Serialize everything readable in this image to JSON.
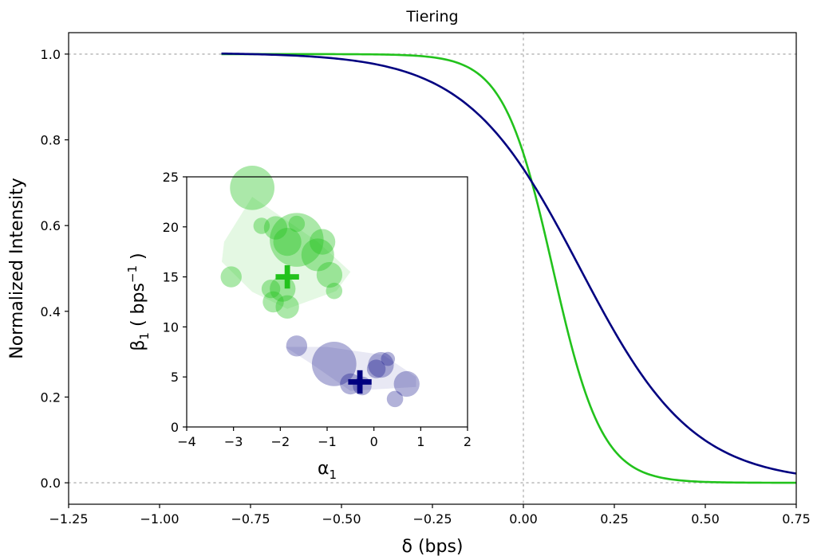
{
  "chart_data": [
    {
      "type": "line",
      "title": "Tiering",
      "xlabel": "δ (bps)",
      "ylabel": "Normalized Intensity",
      "xlim": [
        -1.25,
        0.75
      ],
      "ylim": [
        -0.05,
        1.05
      ],
      "x_ticks": [
        -1.25,
        -1.0,
        -0.75,
        -0.5,
        -0.25,
        0.0,
        0.25,
        0.5,
        0.75
      ],
      "x_tick_labels": [
        "−1.25",
        "−1.00",
        "−0.75",
        "−0.50",
        "−0.25",
        "0.00",
        "0.25",
        "0.50",
        "0.75"
      ],
      "y_ticks": [
        0.0,
        0.2,
        0.4,
        0.6,
        0.8,
        1.0
      ],
      "y_tick_labels": [
        "0.0",
        "0.2",
        "0.4",
        "0.6",
        "0.8",
        "1.0"
      ],
      "reference_lines": {
        "horizontal": [
          0.0,
          1.0
        ],
        "vertical": [
          0.0
        ]
      },
      "grid": false,
      "series": [
        {
          "color": "#22c21c",
          "x_range": [
            -0.83,
            0.75
          ],
          "sigmoid": {
            "center": 0.081,
            "beta": 14.8,
            "scale": 1.0
          }
        },
        {
          "color": "#000080",
          "x_range": [
            -0.83,
            0.75
          ],
          "sigmoid": {
            "center": 0.155,
            "beta": 6.42,
            "scale": 1.003
          }
        }
      ]
    },
    {
      "type": "scatter",
      "xlabel": "α",
      "xlabel_sub": "1",
      "ylabel": "β",
      "ylabel_sub": "1",
      "ylabel_suffix": " ( bps",
      "ylabel_sup": "−1",
      "ylabel_end": " )",
      "xlim": [
        -4,
        2
      ],
      "ylim": [
        0,
        25
      ],
      "x_ticks": [
        -4,
        -3,
        -2,
        -1,
        0,
        1,
        2
      ],
      "x_tick_labels": [
        "−4",
        "−3",
        "−2",
        "−1",
        "0",
        "1",
        "2"
      ],
      "y_ticks": [
        0,
        5,
        10,
        15,
        20,
        25
      ],
      "y_tick_labels": [
        "0",
        "5",
        "10",
        "15",
        "20",
        "25"
      ],
      "series": [
        {
          "color": "#22c21c",
          "point_alpha": 0.38,
          "hull_alpha": 0.12,
          "points": [
            {
              "x": -2.6,
              "y": 23.9,
              "r": 0.95
            },
            {
              "x": -2.4,
              "y": 20.1,
              "r": 0.35
            },
            {
              "x": -2.1,
              "y": 19.9,
              "r": 0.5
            },
            {
              "x": -1.65,
              "y": 20.3,
              "r": 0.35
            },
            {
              "x": -1.65,
              "y": 18.7,
              "r": 1.15
            },
            {
              "x": -1.85,
              "y": 18.5,
              "r": 0.6
            },
            {
              "x": -1.1,
              "y": 18.5,
              "r": 0.55
            },
            {
              "x": -1.2,
              "y": 17.2,
              "r": 0.7
            },
            {
              "x": -0.95,
              "y": 15.2,
              "r": 0.55
            },
            {
              "x": -3.05,
              "y": 15.0,
              "r": 0.45
            },
            {
              "x": -2.2,
              "y": 13.8,
              "r": 0.4
            },
            {
              "x": -1.95,
              "y": 13.8,
              "r": 0.55
            },
            {
              "x": -0.85,
              "y": 13.6,
              "r": 0.35
            },
            {
              "x": -2.15,
              "y": 12.5,
              "r": 0.45
            },
            {
              "x": -1.85,
              "y": 12.0,
              "r": 0.5
            }
          ],
          "hull": [
            [
              -3.2,
              18.5
            ],
            [
              -2.6,
              23.0
            ],
            [
              -1.2,
              18.5
            ],
            [
              -0.5,
              15.5
            ],
            [
              -0.8,
              13.6
            ],
            [
              -1.85,
              11.8
            ],
            [
              -2.6,
              13.5
            ],
            [
              -3.25,
              16.5
            ]
          ],
          "marker": {
            "x": -1.85,
            "y": 15.0,
            "size": 0.25
          }
        },
        {
          "color": "#000080",
          "point_alpha": 0.3,
          "hull_alpha": 0.09,
          "points": [
            {
              "x": -1.65,
              "y": 8.1,
              "r": 0.45
            },
            {
              "x": -0.85,
              "y": 6.3,
              "r": 0.95
            },
            {
              "x": 0.3,
              "y": 6.8,
              "r": 0.3
            },
            {
              "x": 0.15,
              "y": 6.2,
              "r": 0.55
            },
            {
              "x": 0.05,
              "y": 5.8,
              "r": 0.4
            },
            {
              "x": 0.7,
              "y": 4.3,
              "r": 0.55
            },
            {
              "x": -0.5,
              "y": 4.3,
              "r": 0.45
            },
            {
              "x": -0.25,
              "y": 4.1,
              "r": 0.4
            },
            {
              "x": 0.45,
              "y": 2.8,
              "r": 0.35
            }
          ],
          "hull": [
            [
              -1.9,
              8.0
            ],
            [
              -1.0,
              8.0
            ],
            [
              0.2,
              7.2
            ],
            [
              0.9,
              5.0
            ],
            [
              0.9,
              4.0
            ],
            [
              -0.5,
              3.6
            ],
            [
              -1.3,
              6.2
            ]
          ],
          "marker": {
            "x": -0.3,
            "y": 4.5,
            "size": 0.25
          }
        }
      ]
    }
  ]
}
